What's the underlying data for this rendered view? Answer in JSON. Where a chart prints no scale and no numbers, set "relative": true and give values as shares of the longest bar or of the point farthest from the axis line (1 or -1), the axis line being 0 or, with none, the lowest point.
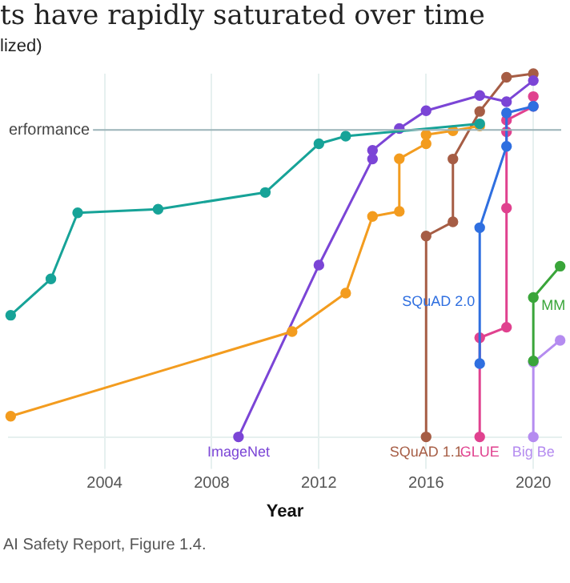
{
  "chart_data": {
    "type": "line",
    "title": "ts have rapidly saturated over time",
    "subtitle": "lized)",
    "xlabel": "Year",
    "relative": true,
    "xlim": [
      2000.43,
      2021.04
    ],
    "xticks": [
      2004,
      2008,
      2012,
      2016,
      2020
    ],
    "grid": "x",
    "legend": false,
    "marker": "circle",
    "line_style": "solid",
    "ref_lines": [
      {
        "axis": "y",
        "value": 0.845,
        "label": "erformance",
        "color": "#9bb3b8"
      }
    ],
    "annotations": [
      "AI Safety Report, Figure 1.4."
    ],
    "series": [
      {
        "color": "#17a398",
        "x": [
          2000.5,
          2002,
          2003,
          2006,
          2010,
          2012,
          2013,
          2018
        ],
        "values": [
          0.335,
          0.435,
          0.617,
          0.627,
          0.673,
          0.807,
          0.828,
          0.862
        ]
      },
      {
        "color": "#f39c1f",
        "x": [
          2000.5,
          2011,
          2013,
          2014,
          2015,
          2015,
          2016,
          2016,
          2017,
          2018
        ],
        "values": [
          0.057,
          0.29,
          0.396,
          0.607,
          0.621,
          0.766,
          0.807,
          0.832,
          0.843,
          0.856
        ]
      },
      {
        "name": "ImageNet",
        "color": "#7b45d6",
        "x": [
          2009,
          2012,
          2014,
          2014,
          2015,
          2016,
          2018,
          2019,
          2020
        ],
        "values": [
          0,
          0.473,
          0.765,
          0.789,
          0.849,
          0.898,
          0.94,
          0.923,
          0.981
        ]
      },
      {
        "name": "SQuAD 1.1",
        "color": "#a65d45",
        "x": [
          2016,
          2016,
          2017,
          2017,
          2018,
          2019,
          2020
        ],
        "values": [
          0,
          0.553,
          0.592,
          0.765,
          0.896,
          0.99,
          1
        ]
      },
      {
        "name": "SQuAD 2.0",
        "color": "#2f6fe0",
        "x": [
          2018,
          2018,
          2019,
          2019,
          2020
        ],
        "values": [
          0.202,
          0.576,
          0.8,
          0.892,
          0.91
        ]
      },
      {
        "name": "GLUE",
        "color": "#e0428f",
        "x": [
          2018,
          2018,
          2019,
          2019,
          2019,
          2019,
          2020,
          2020
        ],
        "values": [
          0,
          0.273,
          0.302,
          0.63,
          0.84,
          0.872,
          0.91,
          0.937
        ]
      },
      {
        "name": "MM",
        "color": "#3aa53a",
        "x": [
          2020,
          2020,
          2021.0
        ],
        "values": [
          0.209,
          0.384,
          0.47
        ]
      },
      {
        "name": "Big Be",
        "color": "#b58cf0",
        "x": [
          2020,
          2020,
          2021.0
        ],
        "values": [
          0,
          0.205,
          0.266
        ]
      }
    ]
  }
}
